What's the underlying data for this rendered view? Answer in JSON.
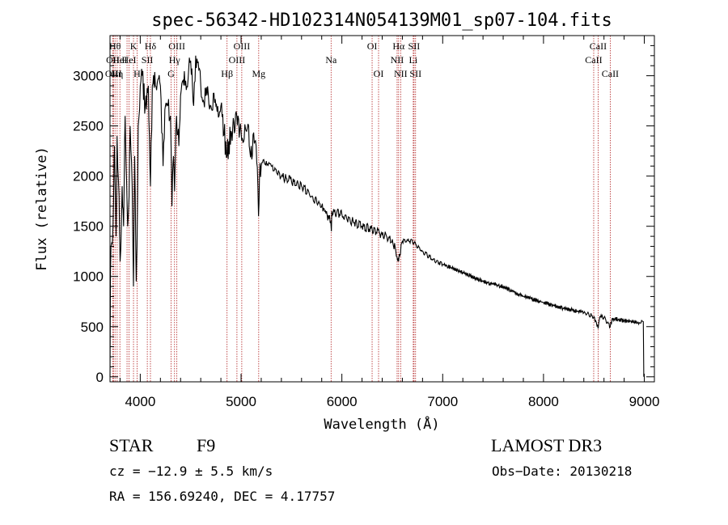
{
  "chart_data": {
    "type": "line",
    "title": "spec-56342-HD102314N054139M01_sp07-104.fits",
    "xlabel": "Wavelength (Å)",
    "ylabel": "Flux (relative)",
    "xlim": [
      3700,
      9100
    ],
    "ylim": [
      -50,
      3400
    ],
    "xticks": [
      4000,
      5000,
      6000,
      7000,
      8000,
      9000
    ],
    "yticks": [
      0,
      500,
      1000,
      1500,
      2000,
      2500,
      3000
    ],
    "line_color": "#000000",
    "marker_color": "#b22222",
    "series": [
      {
        "name": "flux",
        "x": [
          3700,
          3705,
          3710,
          3730,
          3745,
          3760,
          3770,
          3790,
          3800,
          3820,
          3835,
          3850,
          3860,
          3875,
          3889,
          3900,
          3920,
          3933,
          3945,
          3960,
          3968,
          3980,
          4000,
          4020,
          4050,
          4080,
          4101,
          4120,
          4150,
          4200,
          4226,
          4250,
          4300,
          4315,
          4330,
          4340,
          4360,
          4383,
          4400,
          4450,
          4500,
          4530,
          4550,
          4600,
          4650,
          4700,
          4750,
          4800,
          4861,
          4900,
          4957,
          5000,
          5050,
          5100,
          5150,
          5167,
          5173,
          5183,
          5200,
          5250,
          5300,
          5400,
          5500,
          5600,
          5700,
          5800,
          5890,
          5896,
          5900,
          6000,
          6100,
          6200,
          6300,
          6400,
          6500,
          6563,
          6600,
          6700,
          6800,
          6900,
          7000,
          7200,
          7400,
          7600,
          7800,
          8000,
          8200,
          8400,
          8500,
          8542,
          8560,
          8600,
          8662,
          8680,
          8800,
          8950,
          8990,
          8995
        ],
        "y": [
          0,
          1050,
          1300,
          1500,
          2300,
          1400,
          2400,
          1800,
          1150,
          1900,
          1500,
          2600,
          2100,
          1500,
          1800,
          2500,
          1900,
          900,
          2200,
          950,
          1300,
          2500,
          2900,
          3000,
          2700,
          2900,
          1900,
          2900,
          2900,
          2900,
          2100,
          2700,
          2600,
          1700,
          2200,
          1850,
          2600,
          2300,
          2800,
          2950,
          3150,
          2700,
          3200,
          2900,
          2800,
          2700,
          2700,
          2700,
          2200,
          2450,
          2600,
          2450,
          2450,
          2300,
          2300,
          1900,
          1600,
          2000,
          2100,
          2150,
          2100,
          2000,
          1950,
          1900,
          1800,
          1700,
          1550,
          1450,
          1650,
          1620,
          1550,
          1500,
          1470,
          1420,
          1370,
          1150,
          1350,
          1350,
          1250,
          1170,
          1120,
          1040,
          950,
          900,
          800,
          740,
          680,
          640,
          600,
          480,
          600,
          590,
          500,
          580,
          560,
          540,
          550,
          0
        ]
      }
    ],
    "line_markers": [
      {
        "x": 3728,
        "label": "OII",
        "row": 1
      },
      {
        "x": 3750,
        "label": "Hθ",
        "row": 0
      },
      {
        "x": 3734,
        "label": "OIII",
        "row": 2
      },
      {
        "x": 3771,
        "label": "Hη",
        "row": 2
      },
      {
        "x": 3798,
        "label": "HeI",
        "row": 1
      },
      {
        "x": 3869,
        "label": "",
        "row": 0
      },
      {
        "x": 3889,
        "label": "HeI",
        "row": 1
      },
      {
        "x": 3933,
        "label": "K",
        "row": 0
      },
      {
        "x": 3968,
        "label": "H",
        "row": 2
      },
      {
        "x": 4070,
        "label": "SII",
        "row": 1
      },
      {
        "x": 4101,
        "label": "Hδ",
        "row": 0
      },
      {
        "x": 4305,
        "label": "G",
        "row": 2
      },
      {
        "x": 4340,
        "label": "Hγ",
        "row": 1
      },
      {
        "x": 4363,
        "label": "OIII",
        "row": 0
      },
      {
        "x": 4861,
        "label": "Hβ",
        "row": 2
      },
      {
        "x": 4959,
        "label": "OIII",
        "row": 1
      },
      {
        "x": 5007,
        "label": "OIII",
        "row": 0
      },
      {
        "x": 5175,
        "label": "Mg",
        "row": 2
      },
      {
        "x": 5893,
        "label": "Na",
        "row": 1
      },
      {
        "x": 6300,
        "label": "OI",
        "row": 0
      },
      {
        "x": 6364,
        "label": "OI",
        "row": 2
      },
      {
        "x": 6548,
        "label": "NII",
        "row": 1
      },
      {
        "x": 6563,
        "label": "Hα",
        "row": 0
      },
      {
        "x": 6583,
        "label": "NII",
        "row": 2
      },
      {
        "x": 6708,
        "label": "Li",
        "row": 1
      },
      {
        "x": 6716,
        "label": "SII",
        "row": 0
      },
      {
        "x": 6731,
        "label": "SII",
        "row": 2
      },
      {
        "x": 8498,
        "label": "CaII",
        "row": 1
      },
      {
        "x": 8542,
        "label": "CaII",
        "row": 0
      },
      {
        "x": 8662,
        "label": "CaII",
        "row": 2
      }
    ]
  },
  "info": {
    "object_class": "STAR",
    "subclass": "F9",
    "survey": "LAMOST DR3",
    "cz": "cz = −12.9 ± 5.5 km/s",
    "obs_date": "Obs−Date: 20130218",
    "coords": "RA = 156.69240, DEC =   4.17757"
  }
}
